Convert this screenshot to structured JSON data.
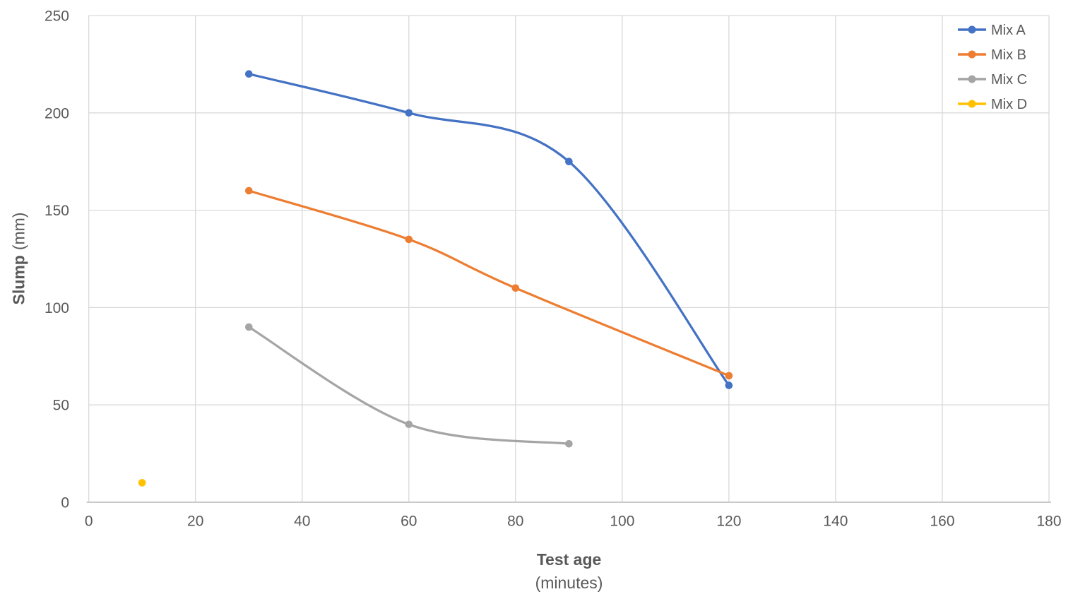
{
  "chart_data": {
    "type": "line",
    "style": "smooth-with-markers",
    "title": "",
    "xlabel": "Test age",
    "xlabel_units": "(minutes)",
    "ylabel": "Slump",
    "ylabel_units": "(mm)",
    "xlim": [
      0,
      180
    ],
    "ylim": [
      0,
      250
    ],
    "x_ticks": [
      0,
      20,
      40,
      60,
      80,
      100,
      120,
      140,
      160,
      180
    ],
    "y_ticks": [
      0,
      50,
      100,
      150,
      200,
      250
    ],
    "grid": true,
    "legend_position": "top-right",
    "series": [
      {
        "name": "Mix A",
        "color": "#4472C4",
        "points": [
          [
            30,
            220
          ],
          [
            60,
            200
          ],
          [
            90,
            175
          ],
          [
            120,
            60
          ]
        ]
      },
      {
        "name": "Mix B",
        "color": "#ED7D31",
        "points": [
          [
            30,
            160
          ],
          [
            60,
            135
          ],
          [
            80,
            110
          ],
          [
            120,
            65
          ]
        ]
      },
      {
        "name": "Mix C",
        "color": "#A5A5A5",
        "points": [
          [
            30,
            90
          ],
          [
            60,
            40
          ],
          [
            90,
            30
          ]
        ]
      },
      {
        "name": "Mix D",
        "color": "#FFC000",
        "points": [
          [
            10,
            10
          ]
        ]
      }
    ],
    "colors": {
      "background": "#FFFFFF",
      "grid": "#D9D9D9",
      "axis_line": "#C9C9C9",
      "tick_label": "#595959",
      "axis_title": "#595959",
      "legend_text": "#595959"
    }
  }
}
